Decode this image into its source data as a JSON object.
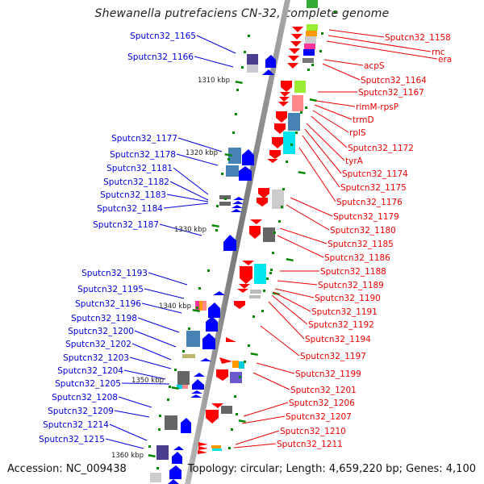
{
  "title": "Shewanella putrefaciens CN-32, complete genome",
  "footer": {
    "accession": "Accession: NC_009438",
    "summary": "Topology: circular; Length: 4,659,220 bp; Genes: 4,100"
  },
  "colors": {
    "forward_strand_label": "#0000dd",
    "reverse_strand_label": "#ee0000",
    "forward_gene": "#0000ff",
    "reverse_gene": "#ff0000",
    "backbone": "#888888",
    "tick": "#008800"
  },
  "scale_ticks": [
    "1310 kbp",
    "1320 kbp",
    "1330 kbp",
    "1340 kbp",
    "1350 kbp",
    "1360 kbp"
  ],
  "left_labels": [
    "Sputcn32_1165",
    "Sputcn32_1166",
    "Sputcn32_1177",
    "Sputcn32_1178",
    "Sputcn32_1181",
    "Sputcn32_1182",
    "Sputcn32_1183",
    "Sputcn32_1184",
    "Sputcn32_1187",
    "Sputcn32_1193",
    "Sputcn32_1195",
    "Sputcn32_1196",
    "Sputcn32_1198",
    "Sputcn32_1200",
    "Sputcn32_1202",
    "Sputcn32_1203",
    "Sputcn32_1204",
    "Sputcn32_1205",
    "Sputcn32_1208",
    "Sputcn32_1209",
    "Sputcn32_1214",
    "Sputcn32_1215"
  ],
  "right_labels": [
    "Sputcn32_1158",
    "rnc",
    "era",
    "acpS",
    "Sputcn32_1164",
    "Sputcn32_1167",
    "rimM-rpsP",
    "trmD",
    "rplS",
    "Sputcn32_1172",
    "tyrA",
    "Sputcn32_1174",
    "Sputcn32_1175",
    "Sputcn32_1176",
    "Sputcn32_1179",
    "Sputcn32_1180",
    "Sputcn32_1185",
    "Sputcn32_1186",
    "Sputcn32_1188",
    "Sputcn32_1189",
    "Sputcn32_1190",
    "Sputcn32_1191",
    "Sputcn32_1192",
    "Sputcn32_1194",
    "Sputcn32_1197",
    "Sputcn32_1199",
    "Sputcn32_1201",
    "Sputcn32_1206",
    "Sputcn32_1207",
    "Sputcn32_1210",
    "Sputcn32_1211"
  ],
  "cog_colors": [
    "#99ee33",
    "#ff9900",
    "#cccccc",
    "#ff3399",
    "#0000ff",
    "#777777",
    "#ff8888",
    "#4682b4",
    "#00e5ee",
    "#6a5acd",
    "#bdb76b",
    "#4b3d8f"
  ]
}
